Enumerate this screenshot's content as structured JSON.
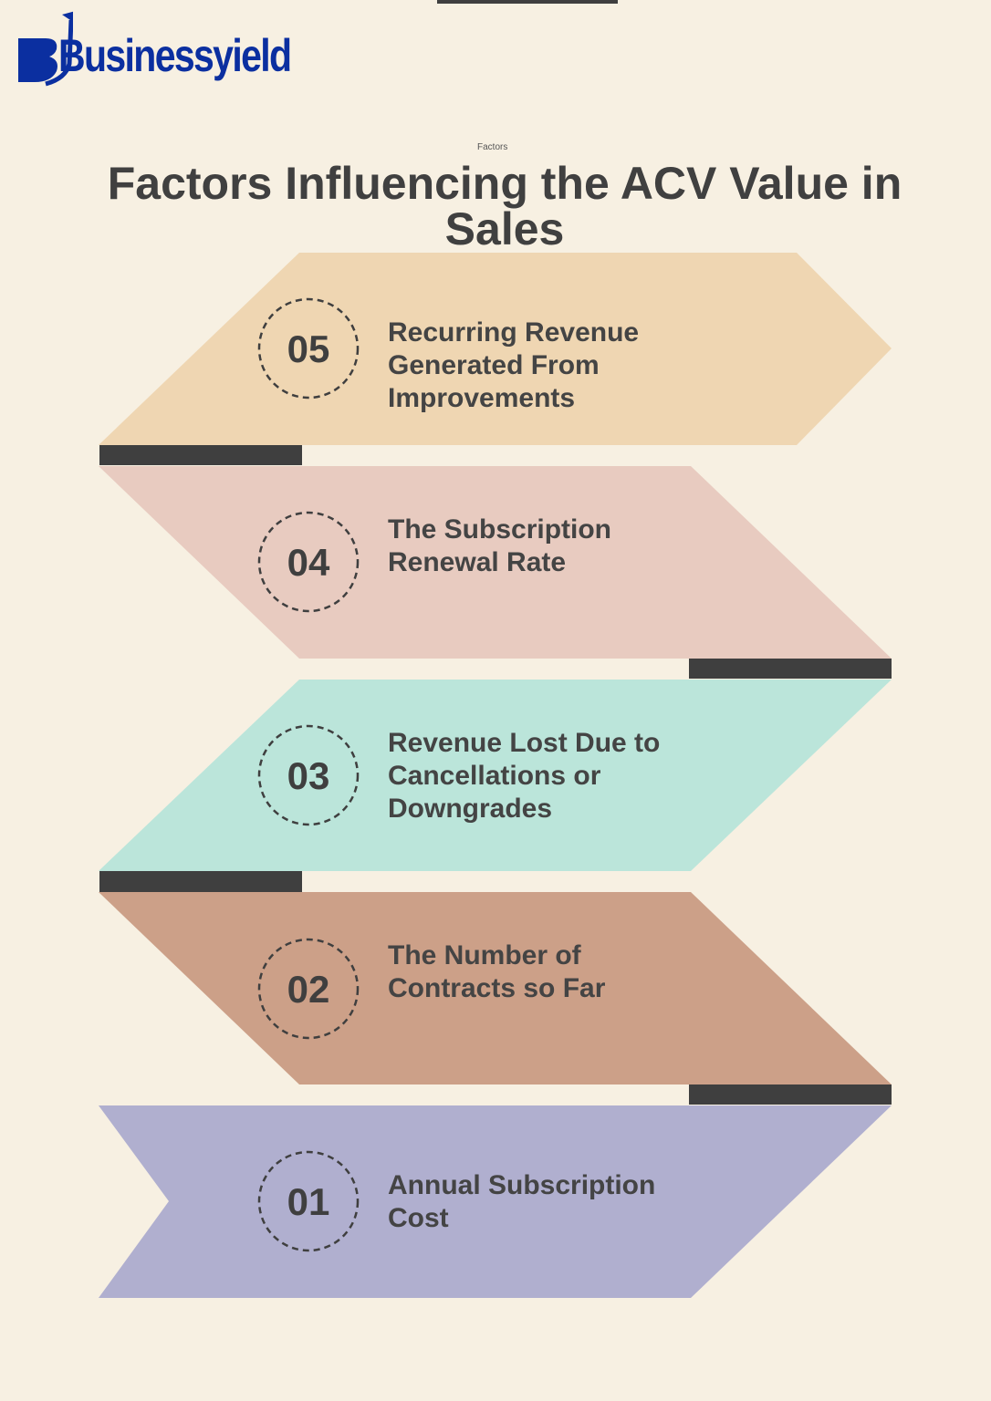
{
  "brand": {
    "logo_text": "Businessyield",
    "color": "#0b2fa0"
  },
  "supra_label": "Factors",
  "title": "Factors Influencing the ACV Value in Sales",
  "factors": [
    {
      "number": "05",
      "label": "Recurring Revenue Generated From Improvements",
      "color": "#efd6b2"
    },
    {
      "number": "04",
      "label": "The Subscription Renewal Rate",
      "color": "#e8cbc0"
    },
    {
      "number": "03",
      "label": "Revenue Lost Due to Cancellations or Downgrades",
      "color": "#bbe5da"
    },
    {
      "number": "02",
      "label": "The Number of Contracts so Far",
      "color": "#cca088"
    },
    {
      "number": "01",
      "label": "Annual Subscription Cost",
      "color": "#b0afcf"
    }
  ],
  "accent_dark": "#3f3f3f"
}
